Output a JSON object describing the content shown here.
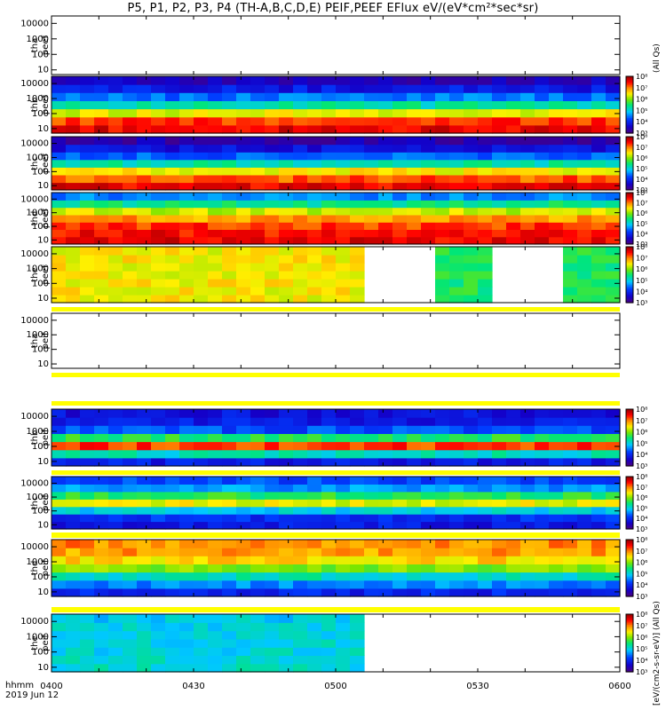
{
  "title": "P5, P1, P2, P3, P4 (TH-A,B,C,D,E) PEIF,PEEF EFlux eV/(eV*cm²*sec*sr)",
  "x_axis": {
    "label_line1": "hhmm",
    "label_line2": "2019 Jun 12",
    "ticks": [
      "0400",
      "0430",
      "0500",
      "0530",
      "0600"
    ]
  },
  "y_ticks": [
    "10",
    "100",
    "1000",
    "10000"
  ],
  "colorbar_ticks": [
    "10³",
    "10⁴",
    "10⁵",
    "10⁶",
    "10⁷",
    "10⁸"
  ],
  "colorbar_labels": {
    "ion": "(All Qs)",
    "electron": "[eV/(cm2-s-sr-eV)] (All Qs)"
  },
  "panels": [
    {
      "id": "tha-peef",
      "line1": "tha",
      "line2": "peef",
      "empty": true
    },
    {
      "id": "thb-peef",
      "line1": "thb",
      "line2": "peef",
      "empty": false
    },
    {
      "id": "thc-peef",
      "line1": "thc",
      "line2": "peef",
      "empty": false
    },
    {
      "id": "thd-peef",
      "line1": "thd",
      "line2": "peef",
      "empty": false
    },
    {
      "id": "the-peef",
      "line1": "the",
      "line2": "peef",
      "empty": false
    },
    {
      "id": "tha-peif",
      "line1": "tha",
      "line2": "peif",
      "empty": true
    },
    {
      "id": "thb-peif",
      "line1": "thb",
      "line2": "peif",
      "empty": false
    },
    {
      "id": "thc-peif",
      "line1": "thc",
      "line2": "peif",
      "empty": false
    },
    {
      "id": "thd-peif",
      "line1": "thd",
      "line2": "peif",
      "empty": false
    },
    {
      "id": "the-peif",
      "line1": "the",
      "line2": "peif",
      "empty": false
    }
  ],
  "chart_data": {
    "type": "heatmap",
    "title": "P5, P1, P2, P3, P4 (TH-A,B,C,D,E) PEIF,PEEF EFlux eV/(eV*cm²*sec*sr)",
    "x_range": [
      "04:00",
      "06:00"
    ],
    "y_scale": "log",
    "y_range_eV": [
      5,
      30000
    ],
    "colorbar_range": [
      1000,
      100000000
    ],
    "colorbar_scale": "log",
    "colormap": "rainbow (purple-blue-cyan-green-yellow-orange-red-dark red)",
    "series": [
      {
        "name": "tha peef",
        "data_present": false
      },
      {
        "name": "thb peef",
        "data_present": true,
        "log10_flux_by_energy_band_low_to_high": [
          7.6,
          7.3,
          6.4,
          5.3,
          4.5,
          3.9,
          3.5
        ]
      },
      {
        "name": "thc peef",
        "data_present": true,
        "log10_flux_by_energy_band_low_to_high": [
          7.6,
          7.2,
          6.5,
          5.3,
          4.4,
          3.8,
          3.4
        ]
      },
      {
        "name": "thd peef",
        "data_present": true,
        "log10_flux_by_energy_band_low_to_high": [
          7.6,
          7.5,
          7.3,
          6.9,
          6.3,
          5.4,
          4.6
        ]
      },
      {
        "name": "the peef",
        "data_present": true,
        "data_gaps": [
          [
            "05:04",
            "05:22"
          ],
          [
            "05:31",
            "05:49"
          ],
          [
            "05:59",
            "06:00"
          ]
        ]
      },
      {
        "name": "tha peif",
        "data_present": false
      },
      {
        "name": "thb peif",
        "data_present": true,
        "log10_flux_by_energy_band_low_to_high": [
          3.9,
          5.2,
          7.3,
          5.6,
          4.3,
          3.9,
          3.8
        ]
      },
      {
        "name": "thc peif",
        "data_present": true,
        "log10_flux_by_energy_band_low_to_high": [
          3.9,
          4.1,
          5.0,
          6.4,
          5.6,
          4.7,
          4.3
        ]
      },
      {
        "name": "thd peif",
        "data_present": true,
        "log10_flux_by_energy_band_low_to_high": [
          4.0,
          4.6,
          5.2,
          6.0,
          6.6,
          6.9,
          7.0
        ]
      },
      {
        "name": "the peif",
        "data_present": true,
        "data_gaps": [
          [
            "05:04",
            "06:00"
          ]
        ]
      }
    ]
  }
}
